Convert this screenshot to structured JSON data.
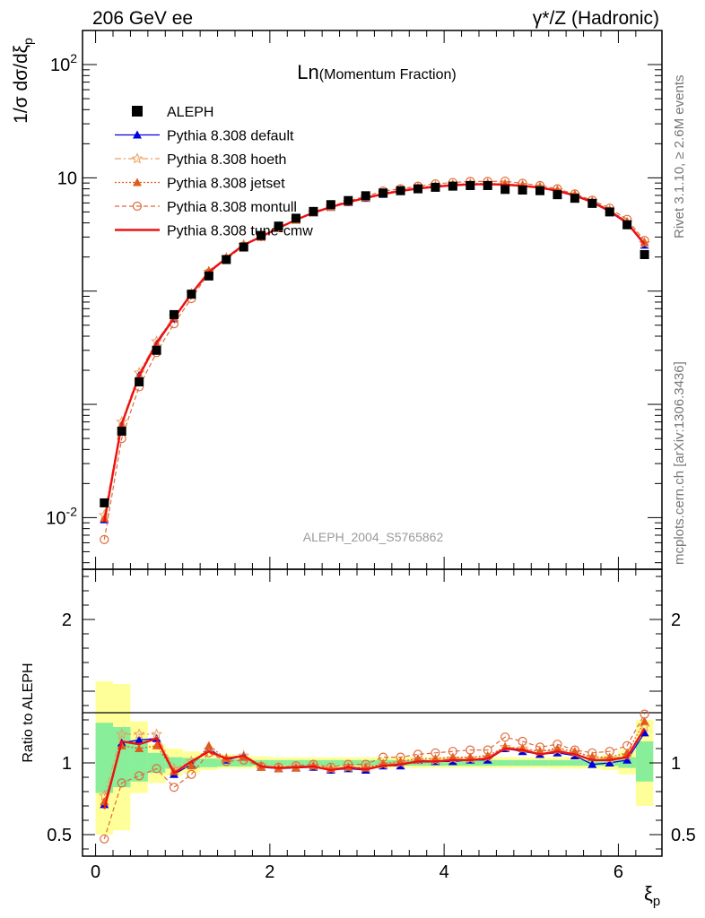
{
  "header": {
    "left": "206 GeV ee",
    "right": "γ*/Z (Hadronic)"
  },
  "side_labels": {
    "rivet": "Rivet 3.1.10, ≥ 2.6M events",
    "mcplots": "mcplots.cern.ch [arXiv:1306.3436]"
  },
  "colors": {
    "data": "#000000",
    "default": "#0000dd",
    "hoeth": "#e8a060",
    "jetset": "#e05a1a",
    "montull": "#e06a3a",
    "cmw": "#ee1111",
    "band_inner": "#88ee99",
    "band_outer": "#ffff99"
  },
  "chart_data": [
    {
      "type": "scatter",
      "title": "Ln(Momentum Fraction)",
      "title_parts": {
        "main": "Ln",
        "sub": "(Momentum Fraction)"
      },
      "ylabel": "1/σ dσ/dξp",
      "ylabel_parts": {
        "main": "1/σ dσ/dξ",
        "sub": "p"
      },
      "yscale": "log",
      "ylim": [
        0.0035,
        200
      ],
      "xlim": [
        -0.15,
        6.5
      ],
      "y_tick_labels": [
        "10^-2",
        "10",
        "10^2"
      ],
      "y_tick_label_values": [
        0.01,
        10,
        100
      ],
      "analysis_tag": "ALEPH_2004_S5765862",
      "legend_position": "top-left",
      "legend": [
        {
          "key": "data",
          "label": "ALEPH",
          "marker": "square"
        },
        {
          "key": "default",
          "label": "Pythia 8.308 default",
          "marker": "triangle"
        },
        {
          "key": "hoeth",
          "label": "Pythia 8.308 hoeth",
          "marker": "star"
        },
        {
          "key": "jetset",
          "label": "Pythia 8.308 jetset",
          "marker": "triangle"
        },
        {
          "key": "montull",
          "label": "Pythia 8.308 montull",
          "marker": "circle-open"
        },
        {
          "key": "cmw",
          "label": "Pythia 8.308 tune-cmw",
          "marker": "none"
        }
      ],
      "x": [
        0.1,
        0.3,
        0.5,
        0.7,
        0.9,
        1.1,
        1.3,
        1.5,
        1.7,
        1.9,
        2.1,
        2.3,
        2.5,
        2.7,
        2.9,
        3.1,
        3.3,
        3.5,
        3.7,
        3.9,
        4.1,
        4.3,
        4.5,
        4.7,
        4.9,
        5.1,
        5.3,
        5.5,
        5.7,
        5.9,
        6.1,
        6.3
      ],
      "series": [
        {
          "key": "data",
          "name": "ALEPH",
          "values": [
            0.0135,
            0.058,
            0.158,
            0.3,
            0.62,
            0.94,
            1.36,
            1.9,
            2.45,
            3.1,
            3.75,
            4.4,
            5.05,
            5.8,
            6.3,
            6.95,
            7.35,
            7.7,
            8.0,
            8.25,
            8.45,
            8.55,
            8.55,
            7.9,
            7.8,
            7.7,
            7.1,
            6.6,
            5.95,
            5.0,
            3.85,
            2.1
          ]
        }
      ],
      "mc_series": [
        {
          "key": "default",
          "name": "Pythia 8.308 default",
          "style": "solid",
          "values": [
            0.0096,
            0.066,
            0.18,
            0.34,
            0.57,
            0.93,
            1.5,
            1.95,
            2.55,
            3.0,
            3.6,
            4.25,
            4.9,
            5.5,
            6.05,
            6.6,
            7.15,
            7.6,
            8.0,
            8.3,
            8.55,
            8.7,
            8.75,
            8.65,
            8.45,
            8.15,
            7.6,
            6.9,
            6.05,
            5.0,
            3.95,
            2.55
          ]
        },
        {
          "key": "hoeth",
          "name": "Pythia 8.308 hoeth",
          "style": "dashdot",
          "values": [
            0.0105,
            0.07,
            0.19,
            0.36,
            0.6,
            0.95,
            1.48,
            1.97,
            2.56,
            3.03,
            3.63,
            4.27,
            4.94,
            5.55,
            6.13,
            6.72,
            7.3,
            7.75,
            8.15,
            8.45,
            8.7,
            8.85,
            8.9,
            8.8,
            8.6,
            8.3,
            7.75,
            7.05,
            6.2,
            5.15,
            4.05,
            2.65
          ]
        },
        {
          "key": "jetset",
          "name": "Pythia 8.308 jetset",
          "style": "dotted",
          "values": [
            0.0099,
            0.065,
            0.175,
            0.335,
            0.585,
            0.92,
            1.52,
            1.95,
            2.55,
            3.0,
            3.6,
            4.25,
            4.95,
            5.55,
            6.1,
            6.7,
            7.3,
            7.8,
            8.2,
            8.5,
            8.75,
            8.9,
            8.95,
            8.8,
            8.6,
            8.3,
            7.8,
            7.1,
            6.2,
            5.2,
            4.1,
            2.7
          ]
        },
        {
          "key": "montull",
          "name": "Pythia 8.308 montull",
          "style": "dashed",
          "values": [
            0.0064,
            0.05,
            0.143,
            0.287,
            0.515,
            0.86,
            1.45,
            1.92,
            2.5,
            3.02,
            3.63,
            4.3,
            5.0,
            5.6,
            6.25,
            6.85,
            7.65,
            8.0,
            8.45,
            8.85,
            9.1,
            9.3,
            9.3,
            9.35,
            8.95,
            8.55,
            8.0,
            7.2,
            6.35,
            5.4,
            4.3,
            2.8
          ]
        },
        {
          "key": "cmw",
          "name": "Pythia 8.308 tune-cmw",
          "style": "solid-thick",
          "values": [
            0.0092,
            0.067,
            0.178,
            0.35,
            0.575,
            0.95,
            1.47,
            1.96,
            2.56,
            3.02,
            3.61,
            4.26,
            4.92,
            5.52,
            6.1,
            6.65,
            7.2,
            7.65,
            8.05,
            8.35,
            8.6,
            8.75,
            8.8,
            8.7,
            8.5,
            8.2,
            7.7,
            7.0,
            6.1,
            5.1,
            4.0,
            2.6
          ]
        }
      ]
    },
    {
      "type": "line",
      "ylabel": "Ratio to ALEPH",
      "xlabel": "ξp",
      "xlabel_parts": {
        "main": "ξ",
        "sub": "p"
      },
      "ylim": [
        0.35,
        2.35
      ],
      "xlim": [
        -0.15,
        6.5
      ],
      "x_ticks": [
        0,
        2,
        4,
        6
      ],
      "x_tick_labels": [
        "0",
        "2",
        "4",
        "6"
      ],
      "y_ticks": [
        0.5,
        1,
        2
      ],
      "y_tick_labels": [
        "0.5",
        "1",
        "2"
      ],
      "x": [
        0.1,
        0.3,
        0.5,
        0.7,
        0.9,
        1.1,
        1.3,
        1.5,
        1.7,
        1.9,
        2.1,
        2.3,
        2.5,
        2.7,
        2.9,
        3.1,
        3.3,
        3.5,
        3.7,
        3.9,
        4.1,
        4.3,
        4.5,
        4.7,
        4.9,
        5.1,
        5.3,
        5.5,
        5.7,
        5.9,
        6.1,
        6.3
      ],
      "bin_edges": [
        0.0,
        0.2,
        0.4,
        0.6,
        0.8,
        1.0,
        1.2,
        1.4,
        1.6,
        1.8,
        2.0,
        2.2,
        2.4,
        2.6,
        2.8,
        3.0,
        3.2,
        3.4,
        3.6,
        3.8,
        4.0,
        4.2,
        4.4,
        4.6,
        4.8,
        5.0,
        5.2,
        5.4,
        5.6,
        5.8,
        6.0,
        6.2,
        6.4
      ],
      "band_inner": {
        "lo": [
          0.79,
          0.83,
          0.87,
          0.93,
          0.96,
          0.965,
          0.97,
          0.975,
          0.975,
          0.98,
          0.98,
          0.98,
          0.98,
          0.98,
          0.98,
          0.98,
          0.98,
          0.98,
          0.98,
          0.98,
          0.98,
          0.98,
          0.98,
          0.98,
          0.98,
          0.98,
          0.98,
          0.98,
          0.98,
          0.98,
          0.965,
          0.87
        ],
        "hi": [
          1.28,
          1.25,
          1.16,
          1.07,
          1.04,
          1.035,
          1.03,
          1.025,
          1.025,
          1.02,
          1.02,
          1.02,
          1.02,
          1.02,
          1.02,
          1.02,
          1.02,
          1.02,
          1.02,
          1.02,
          1.02,
          1.02,
          1.02,
          1.02,
          1.02,
          1.02,
          1.02,
          1.02,
          1.02,
          1.02,
          1.04,
          1.15
        ]
      },
      "band_outer": {
        "lo": [
          0.5,
          0.53,
          0.79,
          0.86,
          0.91,
          0.93,
          0.95,
          0.96,
          0.96,
          0.965,
          0.965,
          0.965,
          0.965,
          0.965,
          0.965,
          0.965,
          0.965,
          0.965,
          0.965,
          0.965,
          0.965,
          0.965,
          0.965,
          0.965,
          0.965,
          0.965,
          0.96,
          0.96,
          0.96,
          0.95,
          0.92,
          0.7
        ],
        "hi": [
          1.57,
          1.55,
          1.29,
          1.13,
          1.1,
          1.08,
          1.07,
          1.06,
          1.05,
          1.045,
          1.04,
          1.04,
          1.04,
          1.04,
          1.04,
          1.04,
          1.04,
          1.04,
          1.04,
          1.04,
          1.04,
          1.04,
          1.04,
          1.04,
          1.04,
          1.04,
          1.04,
          1.04,
          1.045,
          1.055,
          1.09,
          1.3
        ]
      },
      "series": [
        {
          "key": "default",
          "name": "Pythia 8.308 default",
          "values": [
            0.71,
            1.14,
            1.16,
            1.17,
            0.92,
            0.99,
            1.1,
            1.02,
            1.05,
            0.97,
            0.96,
            0.965,
            0.97,
            0.95,
            0.96,
            0.95,
            0.98,
            0.98,
            1.02,
            1.01,
            1.01,
            1.02,
            1.02,
            1.1,
            1.08,
            1.06,
            1.07,
            1.05,
            0.99,
            1.0,
            1.02,
            1.21
          ]
        },
        {
          "key": "hoeth",
          "name": "Pythia 8.308 hoeth",
          "values": [
            0.77,
            1.2,
            1.2,
            1.2,
            0.96,
            1.01,
            1.09,
            1.03,
            1.05,
            0.98,
            0.97,
            0.97,
            0.98,
            0.96,
            0.97,
            0.97,
            0.99,
            1.0,
            1.02,
            1.02,
            1.03,
            1.03,
            1.04,
            1.11,
            1.1,
            1.08,
            1.09,
            1.07,
            1.04,
            1.03,
            1.05,
            1.25
          ]
        },
        {
          "key": "jetset",
          "name": "Pythia 8.308 jetset",
          "values": [
            0.73,
            1.12,
            1.1,
            1.12,
            0.94,
            0.98,
            1.12,
            1.03,
            1.04,
            0.97,
            0.96,
            0.965,
            0.98,
            0.96,
            0.97,
            0.965,
            0.995,
            1.01,
            1.03,
            1.03,
            1.04,
            1.04,
            1.05,
            1.11,
            1.1,
            1.08,
            1.1,
            1.08,
            1.04,
            1.04,
            1.07,
            1.29
          ]
        },
        {
          "key": "montull",
          "name": "Pythia 8.308 montull",
          "values": [
            0.47,
            0.86,
            0.91,
            0.96,
            0.83,
            0.92,
            1.07,
            1.01,
            1.02,
            0.975,
            0.97,
            0.98,
            0.99,
            0.97,
            0.99,
            0.99,
            1.04,
            1.04,
            1.06,
            1.07,
            1.08,
            1.09,
            1.09,
            1.18,
            1.15,
            1.11,
            1.13,
            1.09,
            1.07,
            1.08,
            1.12,
            1.34
          ]
        },
        {
          "key": "cmw",
          "name": "Pythia 8.308 tune-cmw",
          "values": [
            0.68,
            1.15,
            1.13,
            1.17,
            0.93,
            1.01,
            1.08,
            1.03,
            1.05,
            0.975,
            0.965,
            0.97,
            0.975,
            0.95,
            0.97,
            0.955,
            0.98,
            0.99,
            1.01,
            1.01,
            1.02,
            1.02,
            1.03,
            1.1,
            1.09,
            1.06,
            1.08,
            1.06,
            1.02,
            1.02,
            1.04,
            1.24
          ]
        }
      ]
    }
  ]
}
